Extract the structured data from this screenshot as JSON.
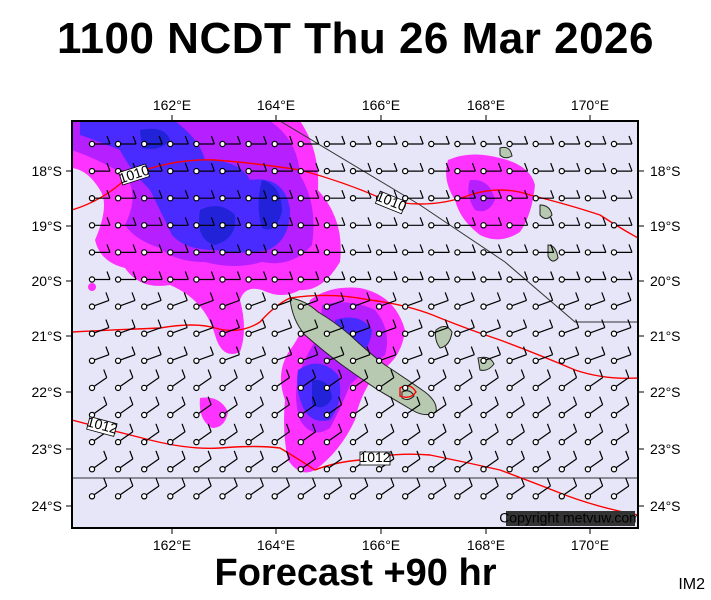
{
  "header": {
    "title": "1100 NCDT Thu 26 Mar 2026"
  },
  "footer": {
    "forecast": "Forecast +90 hr",
    "tag": "IM2"
  },
  "map": {
    "copyright": "Copyright metvuw.com",
    "lon_ticks": [
      "162°E",
      "164°E",
      "166°E",
      "168°E",
      "170°E"
    ],
    "lat_ticks": [
      "18°S",
      "19°S",
      "20°S",
      "21°S",
      "22°S",
      "23°S",
      "24°S"
    ],
    "isobar_labels": [
      "1010",
      "1010",
      "1012",
      "1012"
    ],
    "colors": {
      "background": "#e6e6f8",
      "rain_light": "#ff33ff",
      "rain_mid": "#b61fff",
      "rain_heavy": "#4a2bff",
      "rain_extreme": "#2222d8",
      "isobar": "#ff0000",
      "land": "#b7c9b0"
    }
  }
}
